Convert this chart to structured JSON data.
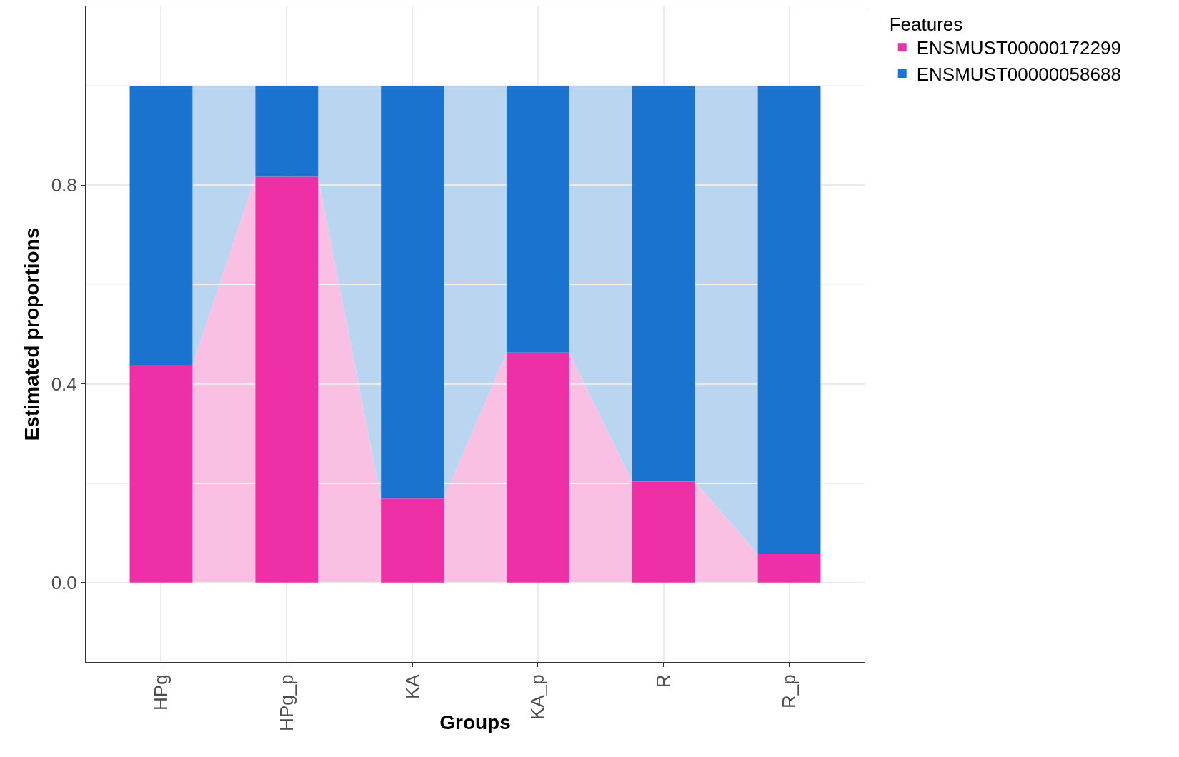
{
  "chart_data": {
    "type": "bar",
    "stacked": true,
    "xlabel": "Groups",
    "ylabel": "Estimated proportions",
    "legend_title": "Features",
    "legend": "top right",
    "grid": true,
    "categories": [
      "HPg",
      "HPg_p",
      "KA",
      "KA_p",
      "R",
      "R_p"
    ],
    "series": [
      {
        "name": "ENSMUST00000172299",
        "color": "#ee2fa6",
        "values": [
          0.438,
          0.817,
          0.169,
          0.463,
          0.203,
          0.057
        ]
      },
      {
        "name": "ENSMUST00000058688",
        "color": "#1a74cf",
        "values": [
          0.562,
          0.183,
          0.831,
          0.537,
          0.797,
          0.943
        ]
      }
    ],
    "ylim": [
      -0.16,
      1.16
    ],
    "yticks": [
      {
        "value": 0,
        "label": "0.0"
      },
      {
        "value": 0.2,
        "label": null
      },
      {
        "value": 0.4,
        "label": "0.4"
      },
      {
        "value": 0.6,
        "label": null
      },
      {
        "value": 0.8,
        "label": "0.8"
      },
      {
        "value": 1.0,
        "label": null
      }
    ]
  }
}
